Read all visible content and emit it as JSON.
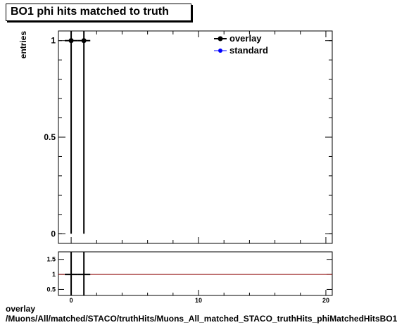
{
  "chart_data": {
    "type": "scatter",
    "title": "BO1 phi hits matched to truth",
    "ylabel": "entries",
    "xlabel": "",
    "main": {
      "xlim": [
        -1,
        20.5
      ],
      "ylim": [
        -0.05,
        1.05
      ],
      "ytick_labels": [
        "0",
        "0.5",
        "1"
      ],
      "ytick_values": [
        0,
        0.5,
        1
      ],
      "series": [
        {
          "name": "overlay",
          "color": "#000000",
          "points": [
            {
              "x": 0,
              "y": 1,
              "xerr": 0.5,
              "yerr": 1
            },
            {
              "x": 1,
              "y": 1,
              "xerr": 0.5,
              "yerr": 1
            }
          ]
        },
        {
          "name": "standard",
          "color": "#0000ff",
          "points": []
        }
      ],
      "legend": "top-right"
    },
    "ratio": {
      "xlim": [
        -1,
        20.5
      ],
      "ylim": [
        0.3,
        1.75
      ],
      "ytick_labels": [
        "0.5",
        "1",
        "1.5"
      ],
      "ytick_values": [
        0.5,
        1,
        1.5
      ],
      "xtick_labels": [
        "0",
        "10",
        "20"
      ],
      "xtick_values": [
        0,
        10,
        20
      ],
      "reference_line": 1,
      "reference_color": "#8b0000",
      "points": [
        {
          "x": 0,
          "y": 1,
          "xerr": 0.5
        },
        {
          "x": 1,
          "y": 1,
          "xerr": 0.5
        }
      ]
    }
  },
  "captions": {
    "line1": "overlay",
    "line2": "/Muons/All/matched/STACO/truthHits/Muons_All_matched_STACO_truthHits_phiMatchedHitsBO1"
  }
}
